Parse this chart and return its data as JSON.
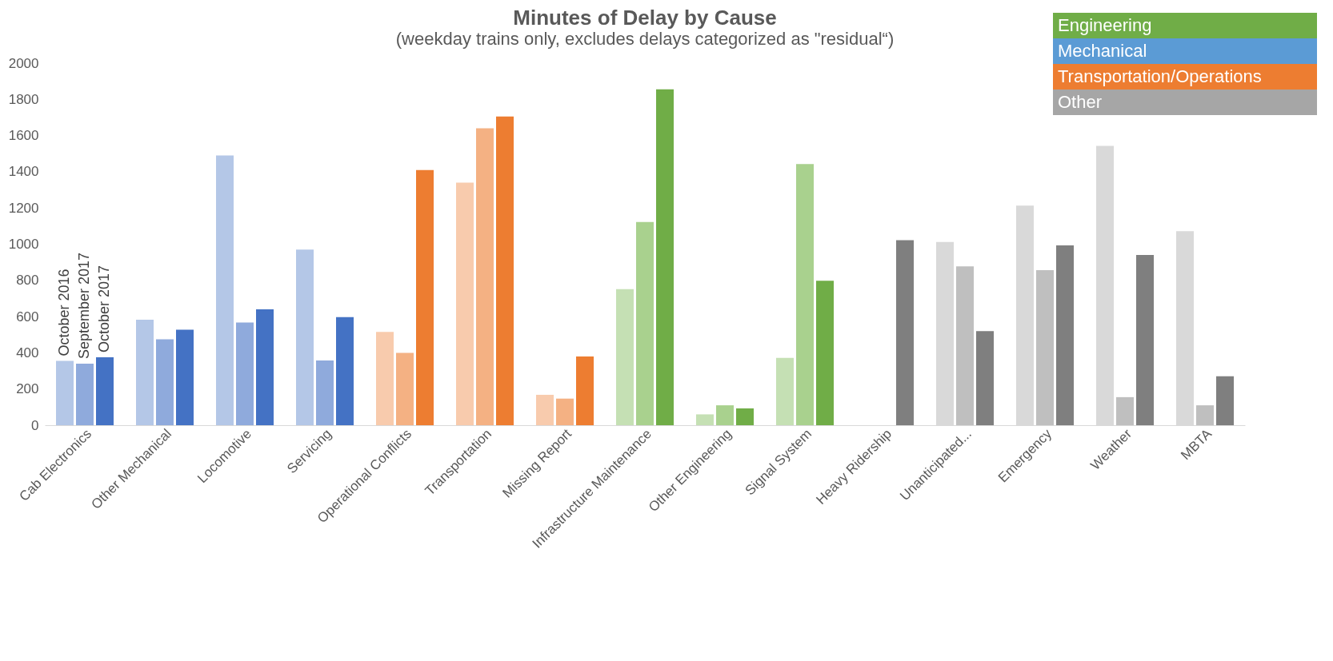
{
  "chart_data": {
    "type": "bar",
    "title": "Minutes of Delay by Cause",
    "subtitle": "(weekday trains only, excludes delays categorized as \"residual“)",
    "categories": [
      "Cab Electronics",
      "Other Mechanical",
      "Locomotive",
      "Servicing",
      "Operational Conflicts",
      "Transportation",
      "Missing Report",
      "Infrastructure Maintenance",
      "Other Engineering",
      "Signal System",
      "Heavy Ridership",
      "Unanticipated...",
      "Emergency",
      "Weather",
      "MBTA"
    ],
    "series": [
      {
        "name": "October 2016",
        "values": [
          355,
          583,
          1490,
          970,
          515,
          1340,
          168,
          752,
          60,
          372,
          null,
          1012,
          1213,
          1543,
          1072
        ],
        "colors": [
          "#b4c7e7",
          "#b4c7e7",
          "#b4c7e7",
          "#b4c7e7",
          "#f8cbad",
          "#f8cbad",
          "#f8cbad",
          "#c5e0b4",
          "#c5e0b4",
          "#c5e0b4",
          "#d9d9d9",
          "#d9d9d9",
          "#d9d9d9",
          "#d9d9d9",
          "#d9d9d9"
        ]
      },
      {
        "name": "September 2017",
        "values": [
          340,
          475,
          567,
          358,
          400,
          1640,
          147,
          1122,
          110,
          1443,
          null,
          877,
          857,
          155,
          110
        ],
        "colors": [
          "#8faadc",
          "#8faadc",
          "#8faadc",
          "#8faadc",
          "#f4b183",
          "#f4b183",
          "#f4b183",
          "#a9d18e",
          "#a9d18e",
          "#a9d18e",
          "#bfbfbf",
          "#bfbfbf",
          "#bfbfbf",
          "#bfbfbf",
          "#bfbfbf"
        ]
      },
      {
        "name": "October 2017",
        "values": [
          375,
          528,
          640,
          597,
          1410,
          1705,
          380,
          1855,
          93,
          798,
          1022,
          520,
          993,
          940,
          270
        ],
        "colors": [
          "#4472c4",
          "#4472c4",
          "#4472c4",
          "#4472c4",
          "#ed7d31",
          "#ed7d31",
          "#ed7d31",
          "#70ad47",
          "#70ad47",
          "#70ad47",
          "#7f7f7f",
          "#7f7f7f",
          "#7f7f7f",
          "#7f7f7f",
          "#7f7f7f"
        ]
      }
    ],
    "annotations": [
      "Engineering",
      "Mechanical",
      "Transportation/Operations",
      "Other"
    ],
    "ylim": [
      0,
      2000
    ],
    "yticks": [
      0,
      200,
      400,
      600,
      800,
      1000,
      1200,
      1400,
      1600,
      1800,
      2000
    ],
    "grid": false
  }
}
